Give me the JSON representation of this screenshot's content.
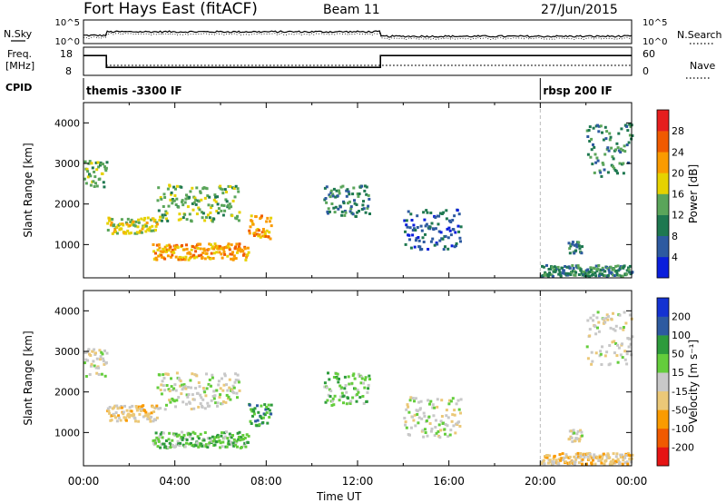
{
  "header": {
    "radar": "Fort Hays East (fitACF)",
    "beam": "Beam 11",
    "date": "27/Jun/2015"
  },
  "strips": {
    "nsky_label": "N.Sky",
    "nsearch_label": "N.Search",
    "noise_ticks": [
      "10^5",
      "10^0"
    ],
    "freq_label_1": "Freq.",
    "freq_label_2": "[MHz]",
    "freq_ticks": [
      "18",
      "8"
    ],
    "nave_label": "Nave",
    "nave_ticks": [
      "60",
      "0"
    ],
    "cpid_label": "CPID",
    "cpid_segments": [
      {
        "label": "themis -3300 IF",
        "start_hour": 0,
        "end_hour": 20.0
      },
      {
        "label": "rbsp 200 IF",
        "start_hour": 20.0,
        "end_hour": 24
      }
    ],
    "freq_series": [
      {
        "from_hour": 0,
        "to_hour": 1.0,
        "mhz": 16
      },
      {
        "from_hour": 1.0,
        "to_hour": 13.0,
        "mhz": 11
      },
      {
        "from_hour": 13.0,
        "to_hour": 24,
        "mhz": 16
      }
    ]
  },
  "chart_data": [
    {
      "type": "heatmap",
      "title": "Power",
      "ylabel": "Slant Range [km]",
      "xlabel": "",
      "ylim": [
        180,
        4500
      ],
      "xlim_hours": [
        0,
        24
      ],
      "yticks": [
        1000,
        2000,
        3000,
        4000
      ],
      "colorbar_label": "Power [dB]",
      "colorbar_ticks": [
        "4",
        "8",
        "12",
        "16",
        "20",
        "24",
        "28"
      ],
      "colorbar_colors": [
        "#0a1edc",
        "#2d5aa0",
        "#1e7850",
        "#5aa55a",
        "#e6d200",
        "#fa9b00",
        "#f05a00",
        "#e61e1e"
      ],
      "regions": [
        {
          "t0": 0.0,
          "t1": 1.0,
          "r0": 2400,
          "r1": 3100,
          "level": 3
        },
        {
          "t0": 1.0,
          "t1": 3.2,
          "r0": 1300,
          "r1": 1700,
          "level": 4
        },
        {
          "t0": 3.2,
          "t1": 6.8,
          "r0": 1600,
          "r1": 2500,
          "level": 3
        },
        {
          "t0": 3.0,
          "t1": 7.2,
          "r0": 650,
          "r1": 1050,
          "level": 5
        },
        {
          "t0": 7.2,
          "t1": 8.2,
          "r0": 1150,
          "r1": 1750,
          "level": 5
        },
        {
          "t0": 10.5,
          "t1": 12.5,
          "r0": 1700,
          "r1": 2500,
          "level": 2
        },
        {
          "t0": 14.0,
          "t1": 16.5,
          "r0": 900,
          "r1": 1900,
          "level": 1
        },
        {
          "t0": 20.0,
          "t1": 24.0,
          "r0": 250,
          "r1": 520,
          "level": 2
        },
        {
          "t0": 21.2,
          "t1": 21.8,
          "r0": 800,
          "r1": 1100,
          "level": 2
        },
        {
          "t0": 22.0,
          "t1": 24.0,
          "r0": 2700,
          "r1": 4000,
          "level": 2
        }
      ]
    },
    {
      "type": "heatmap",
      "title": "Velocity",
      "ylabel": "Slant Range [km]",
      "xlabel": "Time UT",
      "ylim": [
        180,
        4500
      ],
      "xlim_hours": [
        0,
        24
      ],
      "yticks": [
        1000,
        2000,
        3000,
        4000
      ],
      "xtick_labels": [
        "00:00",
        "04:00",
        "08:00",
        "12:00",
        "16:00",
        "20:00",
        "00:00"
      ],
      "colorbar_label": "Velocity [m s⁻¹]",
      "colorbar_ticks": [
        "-200",
        "-100",
        "-50",
        "-15",
        "15",
        "50",
        "100",
        "200"
      ],
      "colorbar_colors": [
        "#e61414",
        "#f05a00",
        "#fa9b00",
        "#ebc878",
        "#c8c8c8",
        "#64cd3c",
        "#2d9b3c",
        "#2d5aa0",
        "#1432d2"
      ],
      "regions": [
        {
          "t0": 0.0,
          "t1": 1.0,
          "r0": 2400,
          "r1": 3100,
          "color_index": 4
        },
        {
          "t0": 1.0,
          "t1": 3.2,
          "r0": 1300,
          "r1": 1700,
          "color_index": 3
        },
        {
          "t0": 3.2,
          "t1": 6.8,
          "r0": 1600,
          "r1": 2500,
          "color_index": 4
        },
        {
          "t0": 3.0,
          "t1": 7.2,
          "r0": 650,
          "r1": 1050,
          "color_index": 5
        },
        {
          "t0": 7.2,
          "t1": 8.2,
          "r0": 1150,
          "r1": 1750,
          "color_index": 6
        },
        {
          "t0": 10.5,
          "t1": 12.5,
          "r0": 1700,
          "r1": 2500,
          "color_index": 5
        },
        {
          "t0": 14.0,
          "t1": 16.5,
          "r0": 900,
          "r1": 1900,
          "color_index": 4
        },
        {
          "t0": 20.0,
          "t1": 24.0,
          "r0": 250,
          "r1": 520,
          "color_index": 3
        },
        {
          "t0": 21.2,
          "t1": 21.8,
          "r0": 800,
          "r1": 1100,
          "color_index": 4
        },
        {
          "t0": 22.0,
          "t1": 24.0,
          "r0": 2700,
          "r1": 4000,
          "color_index": 4
        }
      ]
    }
  ]
}
